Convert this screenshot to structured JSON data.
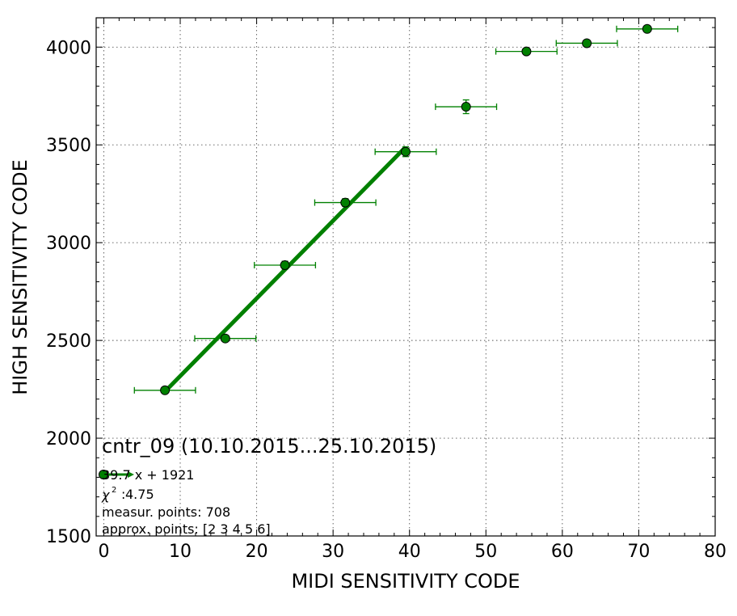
{
  "chart_data": {
    "type": "scatter",
    "title": "cntr_09 (10.10.2015...25.10.2015)",
    "xlabel": "MIDI SENSITIVITY CODE",
    "ylabel": "HIGH SENSITIVITY CODE",
    "xlim": [
      -1,
      80
    ],
    "ylim": [
      1500,
      4150
    ],
    "xticks": [
      0,
      10,
      20,
      30,
      40,
      50,
      60,
      70,
      80
    ],
    "yticks": [
      1500,
      2000,
      2500,
      3000,
      3500,
      4000
    ],
    "grid": true,
    "colors": {
      "series": "#008000",
      "marker_edge": "#000000"
    },
    "points": [
      {
        "x": 8.0,
        "y": 2245,
        "xerr": 4,
        "yerr": 10
      },
      {
        "x": 15.9,
        "y": 2510,
        "xerr": 4,
        "yerr": 12
      },
      {
        "x": 23.7,
        "y": 2885,
        "xerr": 4,
        "yerr": 20
      },
      {
        "x": 31.6,
        "y": 3205,
        "xerr": 4,
        "yerr": 20
      },
      {
        "x": 39.5,
        "y": 3465,
        "xerr": 4,
        "yerr": 25
      },
      {
        "x": 47.4,
        "y": 3695,
        "xerr": 4,
        "yerr": 35
      },
      {
        "x": 55.3,
        "y": 3978,
        "xerr": 4,
        "yerr": 10
      },
      {
        "x": 63.2,
        "y": 4020,
        "xerr": 4,
        "yerr": 10
      },
      {
        "x": 71.1,
        "y": 4093,
        "xerr": 4,
        "yerr": 10
      }
    ],
    "fit": {
      "slope": 39.7,
      "intercept": 1921,
      "x_range": [
        8.0,
        39.5
      ]
    },
    "legend": {
      "fit_label": "39.7 x + 1921",
      "chi_label": "4.75",
      "measur_points": "measur. points: 708",
      "approx_points": "approx. points: [2 3 4 5 6]"
    }
  }
}
